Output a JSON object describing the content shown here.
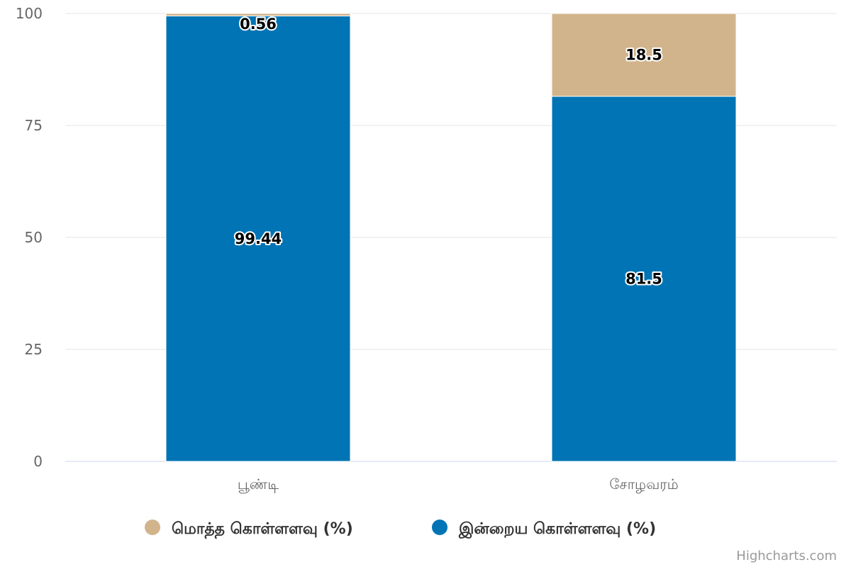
{
  "chart_data": {
    "type": "bar",
    "stacked": true,
    "orientation": "vertical",
    "categories": [
      "பூண்டி",
      "சோழவரம்"
    ],
    "series": [
      {
        "name": "மொத்த கொள்ளளவு (%)",
        "color": "#d2b48c",
        "values": [
          0.56,
          18.5
        ]
      },
      {
        "name": "இன்றைய கொள்ளளவு (%)",
        "color": "#0074b4",
        "values": [
          99.44,
          81.5
        ]
      }
    ],
    "ylim": [
      0,
      100
    ],
    "yticks": [
      0,
      25,
      50,
      75,
      100
    ],
    "grid": true,
    "legend": "bottom-center",
    "data_labels": true
  },
  "credits": "Highcharts.com"
}
